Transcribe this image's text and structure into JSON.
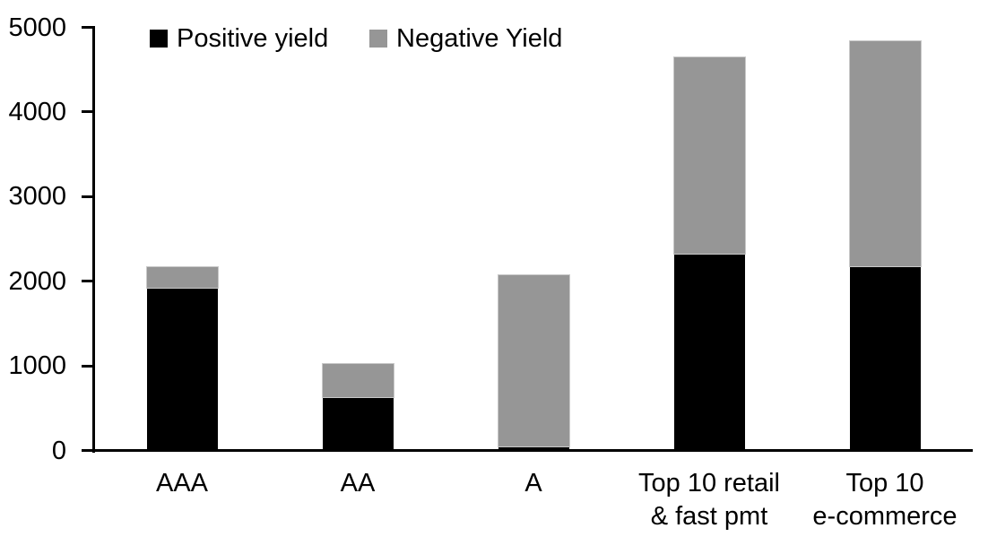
{
  "chart_data": {
    "type": "bar",
    "stacked": true,
    "categories": [
      "AAA",
      "AA",
      "A",
      "Top 10 retail & fast pmt",
      "Top 10 e-commerce"
    ],
    "category_label_lines": [
      [
        "AAA"
      ],
      [
        "AA"
      ],
      [
        "A"
      ],
      [
        "Top 10 retail",
        "& fast pmt"
      ],
      [
        "Top 10",
        "e-commerce"
      ]
    ],
    "series": [
      {
        "name": "Positive yield",
        "color": "#000000",
        "values": [
          1920,
          635,
          50,
          2320,
          2180
        ]
      },
      {
        "name": "Negative Yield",
        "color": "#969696",
        "values": [
          245,
          390,
          2025,
          2325,
          2660
        ]
      }
    ],
    "xlabel": "",
    "ylabel": "",
    "ylim": [
      0,
      5000
    ],
    "yticks": [
      0,
      1000,
      2000,
      3000,
      4000,
      5000
    ],
    "grid": false,
    "legend_position": "top-left-inside"
  },
  "legend": {
    "items": [
      {
        "label": "Positive yield",
        "color": "#000000"
      },
      {
        "label": "Negative Yield",
        "color": "#969696"
      }
    ]
  },
  "colors": {
    "background": "#ffffff",
    "axis": "#000000",
    "positive_series": "#000000",
    "negative_series": "#969696"
  }
}
